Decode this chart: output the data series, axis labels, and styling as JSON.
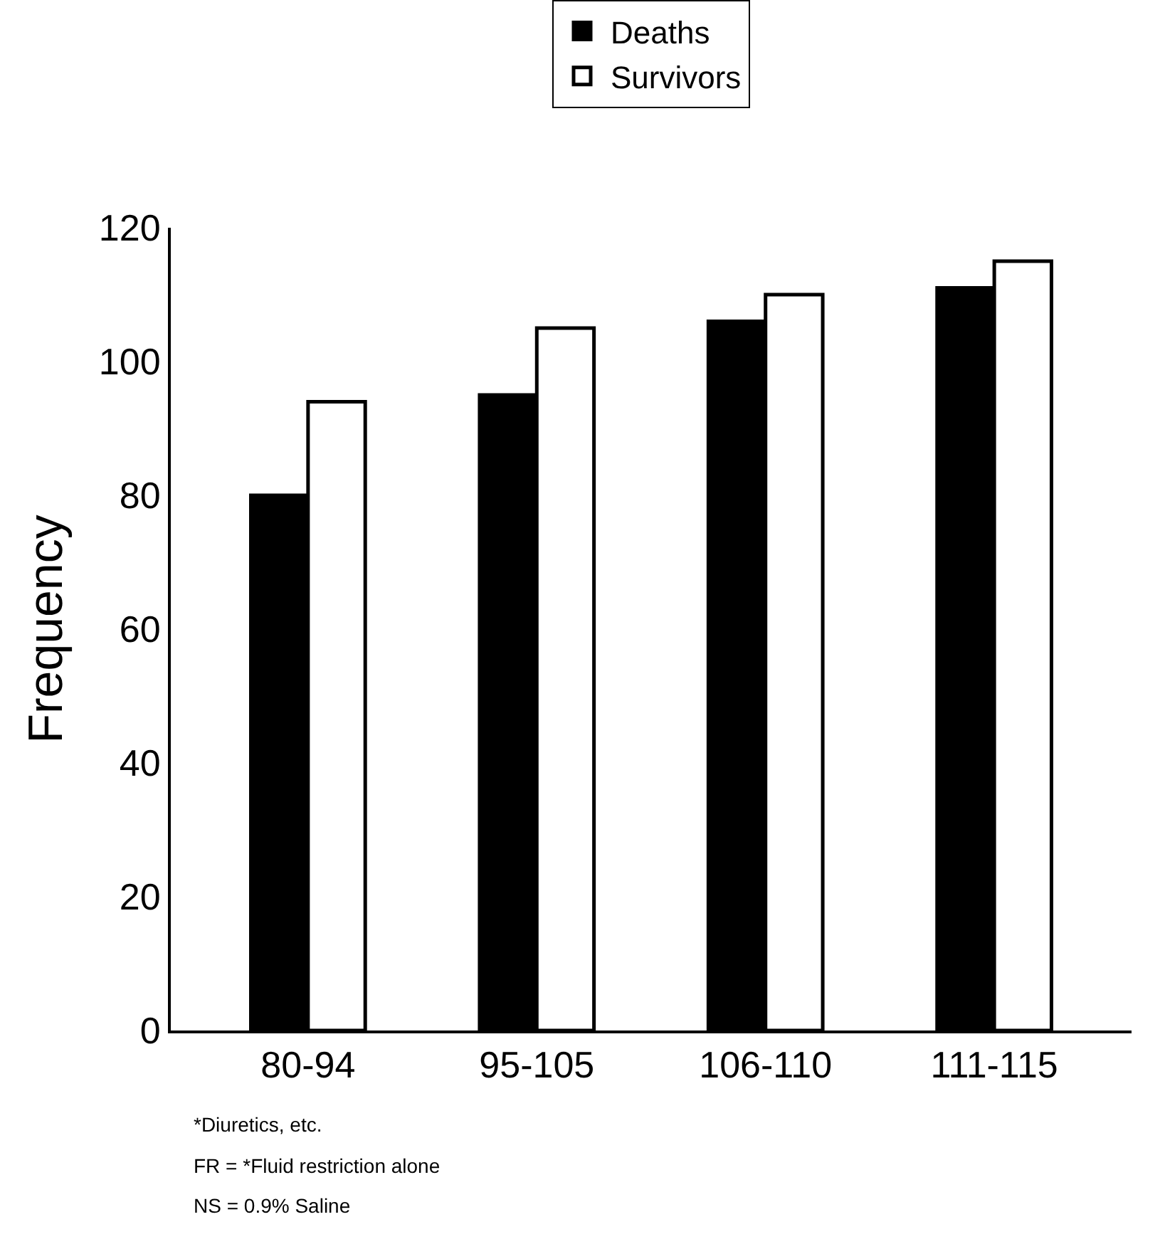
{
  "chart_data": {
    "type": "bar",
    "ylabel": "Frequency",
    "categories": [
      "80-94",
      "95-105",
      "106-110",
      "111-115"
    ],
    "series": [
      {
        "name": "Deaths",
        "color": "#000000",
        "values": [
          80,
          95,
          106,
          111
        ]
      },
      {
        "name": "Survivors",
        "color": "#ffffff",
        "values": [
          94,
          105,
          110,
          115
        ]
      }
    ],
    "ylim": [
      0,
      120
    ],
    "yticks": [
      0,
      20,
      40,
      60,
      80,
      100,
      120
    ],
    "legend": "top",
    "annotations": [
      "*Diuretics, etc.",
      "FR = *Fluid restriction alone",
      "NS = 0.9% Saline"
    ]
  }
}
